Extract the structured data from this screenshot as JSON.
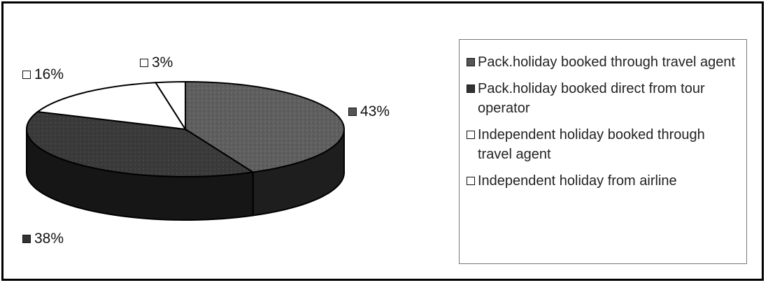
{
  "chart_data": {
    "type": "pie",
    "categories": [
      "Pack.holiday booked through travel agent",
      "Pack.holiday booked direct from tour operator",
      "Independent holiday booked through travel agent",
      "Independent holiday from airline"
    ],
    "values": [
      43,
      38,
      16,
      3
    ],
    "labels": [
      "43%",
      "38%",
      "16%",
      "3%"
    ],
    "colors": [
      "#5a5a5a",
      "#262626",
      "#ffffff",
      "#ffffff"
    ],
    "legend_position": "right",
    "title": ""
  }
}
